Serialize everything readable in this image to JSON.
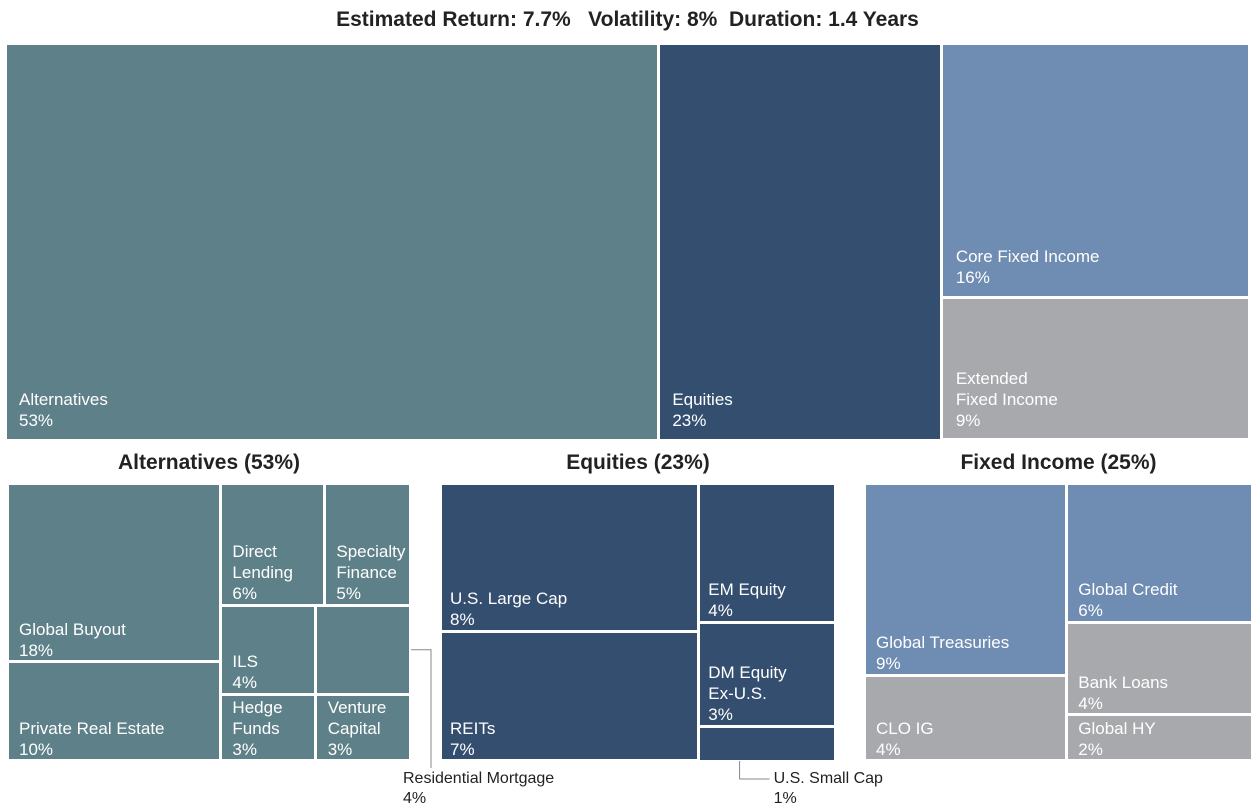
{
  "chart_data": [
    {
      "type": "treemap",
      "title": "Estimated Return: 7.7%   Volatility: 8%  Duration: 1.4 Years",
      "categories": [
        "Alternatives",
        "Equities",
        "Core Fixed Income",
        "Extended\nFixed Income"
      ],
      "values": [
        53,
        23,
        16,
        9
      ],
      "value_labels": [
        "53%",
        "23%",
        "16%",
        "9%"
      ],
      "colors": [
        "#5e8088",
        "#344e70",
        "#6f8cb2",
        "#a7a9ac"
      ]
    },
    {
      "type": "treemap",
      "title": "Alternatives (53%)",
      "categories": [
        "Global Buyout",
        "Private Real Estate",
        "Direct\nLending",
        "Specialty\nFinance",
        "ILS",
        "Residential Mortgage",
        "Hedge\nFunds",
        "Venture\nCapital"
      ],
      "values": [
        18,
        10,
        6,
        5,
        4,
        4,
        3,
        3
      ],
      "value_labels": [
        "18%",
        "10%",
        "6%",
        "5%",
        "4%",
        "4%",
        "3%",
        "3%"
      ],
      "colors": [
        "#5e8088",
        "#5e8088",
        "#5e8088",
        "#5e8088",
        "#5e8088",
        "#5e8088",
        "#5e8088",
        "#5e8088"
      ],
      "callout": 5
    },
    {
      "type": "treemap",
      "title": "Equities (23%)",
      "categories": [
        "U.S. Large Cap",
        "REITs",
        "EM Equity",
        "DM Equity\nEx-U.S.",
        "U.S. Small Cap"
      ],
      "values": [
        8,
        7,
        4,
        3,
        1
      ],
      "value_labels": [
        "8%",
        "7%",
        "4%",
        "3%",
        "1%"
      ],
      "colors": [
        "#344e70",
        "#344e70",
        "#344e70",
        "#344e70",
        "#344e70"
      ],
      "callout": 4
    },
    {
      "type": "treemap",
      "title": "Fixed Income (25%)",
      "categories": [
        "Global Treasuries",
        "CLO IG",
        "Global Credit",
        "Bank Loans",
        "Global HY"
      ],
      "values": [
        9,
        4,
        6,
        4,
        2
      ],
      "value_labels": [
        "9%",
        "4%",
        "6%",
        "4%",
        "2%"
      ],
      "colors": [
        "#6f8cb2",
        "#a7a9ac",
        "#6f8cb2",
        "#a7a9ac",
        "#a7a9ac"
      ]
    }
  ]
}
